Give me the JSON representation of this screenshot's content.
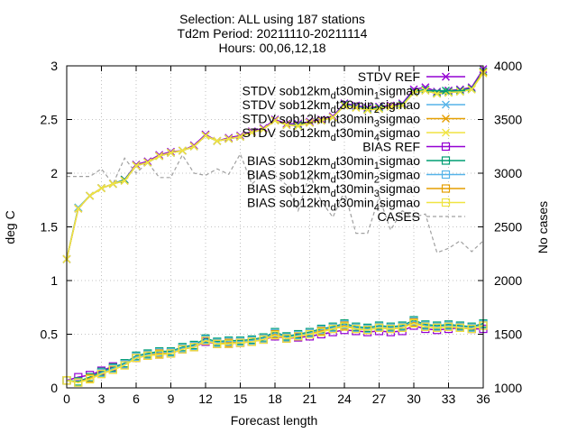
{
  "chart_data": {
    "type": "line",
    "title_lines": [
      "Selection: ALL using   187 stations",
      "Td2m  Period: 20211110-20211114",
      "Hours: 00,06,12,18"
    ],
    "xlabel": "Forecast length",
    "ylabel": "deg C",
    "y2label": "No cases",
    "xlim": [
      0,
      36
    ],
    "ylim": [
      0,
      3
    ],
    "y2lim": [
      1000,
      4000
    ],
    "x_ticks": [
      "0",
      "3",
      "6",
      "9",
      "12",
      "15",
      "18",
      "21",
      "24",
      "27",
      "30",
      "33",
      "36"
    ],
    "y_ticks": [
      "0",
      "0.5",
      "1",
      "1.5",
      "2",
      "2.5",
      "3"
    ],
    "y2_ticks": [
      "1000",
      "1500",
      "2000",
      "2500",
      "3000",
      "3500",
      "4000"
    ],
    "grid": true,
    "legend_position": "top-right",
    "x": [
      0,
      1,
      2,
      3,
      4,
      5,
      6,
      7,
      8,
      9,
      10,
      11,
      12,
      13,
      14,
      15,
      16,
      17,
      18,
      19,
      20,
      21,
      22,
      23,
      24,
      25,
      26,
      27,
      28,
      29,
      30,
      31,
      32,
      33,
      34,
      35,
      36
    ],
    "series": [
      {
        "name": "STDV REF",
        "color": "#9400d3",
        "marker": "x",
        "axis": "y",
        "values": [
          1.2,
          1.67,
          1.79,
          1.86,
          1.9,
          1.94,
          2.08,
          2.11,
          2.17,
          2.2,
          2.21,
          2.26,
          2.36,
          2.3,
          2.33,
          2.35,
          2.39,
          2.42,
          2.5,
          2.46,
          2.46,
          2.48,
          2.5,
          2.53,
          2.65,
          2.63,
          2.61,
          2.62,
          2.63,
          2.65,
          2.78,
          2.8,
          2.76,
          2.77,
          2.78,
          2.8,
          2.97
        ]
      },
      {
        "name": "STDV sob12km_dt30min_1sigmao",
        "color": "#009e73",
        "marker": "x",
        "axis": "y",
        "values": [
          1.2,
          1.68,
          1.79,
          1.86,
          1.9,
          1.94,
          2.07,
          2.1,
          2.16,
          2.19,
          2.21,
          2.25,
          2.35,
          2.3,
          2.32,
          2.34,
          2.38,
          2.41,
          2.49,
          2.45,
          2.45,
          2.47,
          2.49,
          2.52,
          2.64,
          2.62,
          2.6,
          2.61,
          2.62,
          2.64,
          2.76,
          2.78,
          2.75,
          2.76,
          2.77,
          2.79,
          2.95
        ]
      },
      {
        "name": "STDV sob12km_dt30min_2sigmao",
        "color": "#56b4e9",
        "marker": "x",
        "axis": "y",
        "values": [
          1.2,
          1.68,
          1.79,
          1.86,
          1.9,
          1.93,
          2.07,
          2.1,
          2.16,
          2.19,
          2.21,
          2.25,
          2.35,
          2.3,
          2.32,
          2.34,
          2.38,
          2.41,
          2.49,
          2.45,
          2.44,
          2.47,
          2.49,
          2.52,
          2.63,
          2.62,
          2.59,
          2.6,
          2.62,
          2.63,
          2.75,
          2.77,
          2.74,
          2.75,
          2.76,
          2.78,
          2.94
        ]
      },
      {
        "name": "STDV sob12km_dt30min_3sigmao",
        "color": "#e69f00",
        "marker": "x",
        "axis": "y",
        "values": [
          1.2,
          1.67,
          1.79,
          1.86,
          1.9,
          1.93,
          2.07,
          2.1,
          2.16,
          2.19,
          2.21,
          2.25,
          2.35,
          2.3,
          2.32,
          2.34,
          2.38,
          2.41,
          2.49,
          2.45,
          2.44,
          2.47,
          2.49,
          2.52,
          2.63,
          2.61,
          2.59,
          2.6,
          2.62,
          2.63,
          2.75,
          2.77,
          2.74,
          2.75,
          2.76,
          2.78,
          2.94
        ]
      },
      {
        "name": "STDV sob12km_dt30min_4sigmao",
        "color": "#f0e442",
        "marker": "x",
        "axis": "y",
        "values": [
          1.2,
          1.67,
          1.79,
          1.86,
          1.9,
          1.93,
          2.07,
          2.1,
          2.16,
          2.19,
          2.21,
          2.25,
          2.35,
          2.3,
          2.32,
          2.34,
          2.38,
          2.41,
          2.49,
          2.45,
          2.44,
          2.47,
          2.49,
          2.52,
          2.63,
          2.61,
          2.59,
          2.6,
          2.62,
          2.63,
          2.75,
          2.77,
          2.74,
          2.75,
          2.76,
          2.78,
          2.93
        ]
      },
      {
        "name": "BIAS REF",
        "color": "#9400d3",
        "marker": "square",
        "axis": "y",
        "values": [
          0.07,
          0.1,
          0.12,
          0.16,
          0.2,
          0.22,
          0.28,
          0.3,
          0.31,
          0.32,
          0.36,
          0.38,
          0.43,
          0.41,
          0.41,
          0.42,
          0.43,
          0.45,
          0.48,
          0.46,
          0.47,
          0.48,
          0.5,
          0.52,
          0.54,
          0.53,
          0.52,
          0.53,
          0.52,
          0.53,
          0.58,
          0.55,
          0.54,
          0.55,
          0.56,
          0.55,
          0.55
        ]
      },
      {
        "name": "BIAS sob12km_dt30min_1sigmao",
        "color": "#009e73",
        "marker": "square",
        "axis": "y",
        "values": [
          0.07,
          0.06,
          0.1,
          0.15,
          0.19,
          0.23,
          0.3,
          0.32,
          0.34,
          0.34,
          0.38,
          0.4,
          0.46,
          0.43,
          0.44,
          0.44,
          0.45,
          0.47,
          0.52,
          0.48,
          0.5,
          0.52,
          0.55,
          0.57,
          0.6,
          0.57,
          0.56,
          0.58,
          0.57,
          0.58,
          0.63,
          0.59,
          0.58,
          0.59,
          0.58,
          0.57,
          0.6
        ]
      },
      {
        "name": "BIAS sob12km_dt30min_2sigmao",
        "color": "#56b4e9",
        "marker": "square",
        "axis": "y",
        "values": [
          0.07,
          0.05,
          0.09,
          0.14,
          0.18,
          0.22,
          0.29,
          0.31,
          0.33,
          0.33,
          0.37,
          0.39,
          0.45,
          0.42,
          0.43,
          0.43,
          0.44,
          0.46,
          0.51,
          0.47,
          0.49,
          0.51,
          0.54,
          0.56,
          0.59,
          0.56,
          0.55,
          0.57,
          0.56,
          0.57,
          0.62,
          0.58,
          0.57,
          0.58,
          0.57,
          0.56,
          0.59
        ]
      },
      {
        "name": "BIAS sob12km_dt30min_3sigmao",
        "color": "#e69f00",
        "marker": "square",
        "axis": "y",
        "values": [
          0.07,
          0.05,
          0.09,
          0.13,
          0.17,
          0.21,
          0.28,
          0.3,
          0.32,
          0.32,
          0.36,
          0.38,
          0.44,
          0.41,
          0.42,
          0.42,
          0.43,
          0.45,
          0.5,
          0.46,
          0.48,
          0.5,
          0.53,
          0.55,
          0.58,
          0.55,
          0.54,
          0.56,
          0.55,
          0.56,
          0.61,
          0.57,
          0.56,
          0.57,
          0.56,
          0.55,
          0.58
        ]
      },
      {
        "name": "BIAS sob12km_dt30min_4sigmao",
        "color": "#f0e442",
        "marker": "square",
        "axis": "y",
        "values": [
          0.07,
          0.05,
          0.08,
          0.13,
          0.17,
          0.21,
          0.28,
          0.3,
          0.31,
          0.32,
          0.36,
          0.38,
          0.44,
          0.41,
          0.41,
          0.42,
          0.43,
          0.45,
          0.49,
          0.46,
          0.48,
          0.5,
          0.52,
          0.55,
          0.57,
          0.55,
          0.54,
          0.56,
          0.55,
          0.56,
          0.6,
          0.57,
          0.56,
          0.57,
          0.56,
          0.55,
          0.58
        ]
      },
      {
        "name": "CASES",
        "color": "#a0a0a0",
        "marker": "none",
        "dashed": true,
        "axis": "y2",
        "values": [
          2970,
          2970,
          2970,
          3040,
          2900,
          3140,
          3000,
          3100,
          2960,
          2960,
          3170,
          3000,
          2980,
          3040,
          2990,
          3180,
          2900,
          2990,
          2980,
          2890,
          2650,
          2990,
          2740,
          2590,
          2830,
          2440,
          2440,
          2780,
          2470,
          2650,
          2590,
          2620,
          2260,
          2300,
          2370,
          2270,
          2370
        ]
      }
    ]
  }
}
